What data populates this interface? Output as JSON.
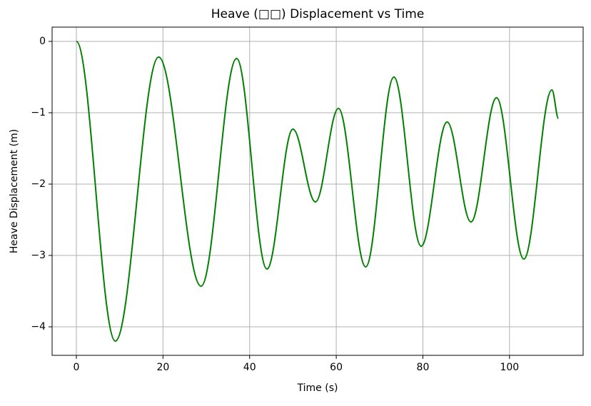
{
  "chart_data": {
    "type": "line",
    "title": "Heave (□□) Displacement vs Time",
    "x_label": "Time (s)",
    "y_label": "Heave Displacement (m)",
    "x": [
      0,
      9,
      19,
      28.8,
      37,
      44,
      50,
      55.2,
      60.5,
      66.8,
      73.3,
      79.6,
      85.6,
      91.1,
      97,
      103.3,
      109.8,
      111.3
    ],
    "series": [
      {
        "name": "Heave",
        "color": "#008000",
        "values": [
          0,
          -4.2,
          -0.22,
          -3.43,
          -0.24,
          -3.19,
          -1.23,
          -2.25,
          -0.94,
          -3.16,
          -0.5,
          -2.87,
          -1.13,
          -2.53,
          -0.79,
          -3.05,
          -0.68,
          -1.08
        ]
      }
    ],
    "xlim": [
      -5.6,
      117
    ],
    "ylim": [
      -4.4,
      0.2
    ],
    "xticks": [
      0,
      20,
      40,
      60,
      80,
      100
    ],
    "yticks": [
      0,
      {
        "value": -1,
        "label": "−1"
      },
      {
        "value": -2,
        "label": "−2"
      },
      {
        "value": -3,
        "label": "−3"
      },
      {
        "value": -4,
        "label": "−4"
      }
    ],
    "grid": true
  }
}
